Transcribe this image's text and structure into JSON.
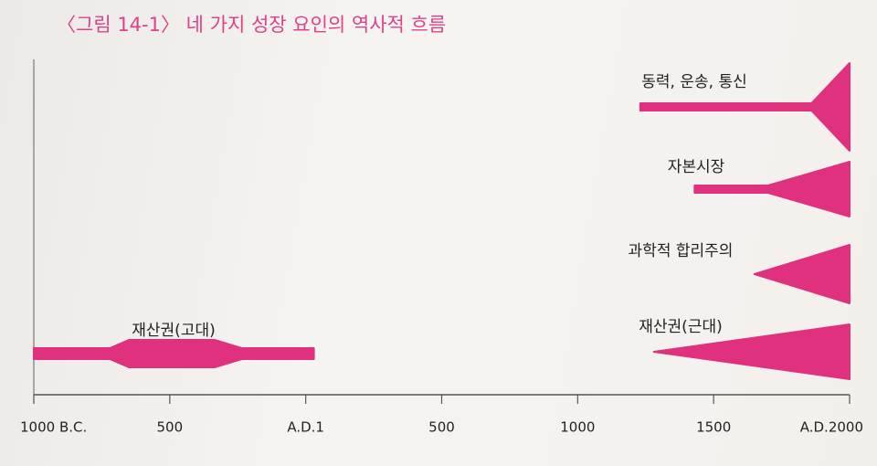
{
  "chart_data": {
    "type": "timeline",
    "title": "〈그림 14-1〉 네 가지 성장 요인의 역사적 흐름",
    "xlim": [
      -1000,
      2000
    ],
    "xticks": [
      {
        "value": -1000,
        "label": "1000 B.C."
      },
      {
        "value": -500,
        "label": "500"
      },
      {
        "value": 0,
        "label": "A.D.1"
      },
      500,
      1000,
      1500,
      {
        "value": 2000,
        "label": "A.D.2000"
      }
    ],
    "series": [
      {
        "name": "동력, 운송, 통신",
        "color": "#e0317f",
        "x": [
          1230,
          1860,
          2000
        ],
        "values": [
          1,
          1,
          12
        ]
      },
      {
        "name": "자본시장",
        "color": "#e0317f",
        "x": [
          1430,
          1700,
          2000
        ],
        "values": [
          1,
          1,
          7.5
        ]
      },
      {
        "name": "과학적 합리주의",
        "color": "#e0317f",
        "x": [
          1650,
          2000
        ],
        "values": [
          0,
          8
        ]
      },
      {
        "name": "재산권(근대)",
        "color": "#e0317f",
        "x": [
          1280,
          2000
        ],
        "values": [
          0,
          7.5
        ]
      },
      {
        "name": "재산권(고대)",
        "color": "#e0317f",
        "x": [
          -1000,
          -720,
          -650,
          -335,
          -235,
          30
        ],
        "values": [
          1.5,
          1.5,
          3.75,
          3.75,
          1.5,
          1.5
        ]
      }
    ]
  }
}
